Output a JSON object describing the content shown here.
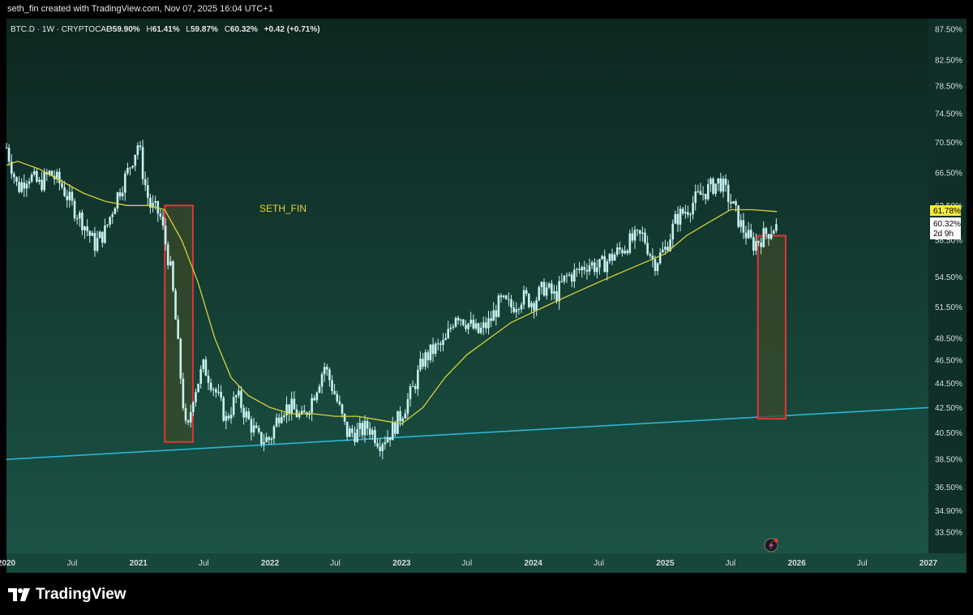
{
  "header": {
    "attribution": "seth_fin created with TradingView.com, Nov 07, 2025 16:04 UTC+1"
  },
  "legend": {
    "symbol": "BTC.D · 1W · CRYPTOCAP",
    "open_label": "O",
    "open": "59.90%",
    "high_label": "H",
    "high": "61.41%",
    "low_label": "L",
    "low": "59.87%",
    "close_label": "C",
    "close": "60.32%",
    "change": "+0.42 (+0.71%)"
  },
  "watermark_text": "SETH_FIN",
  "price_labels": {
    "ma_value": "61.78%",
    "last_price": "60.32%",
    "countdown": "2d 9h"
  },
  "footer": {
    "brand": "TradingView"
  },
  "colors": {
    "bg_top": "#0d2620",
    "bg_bottom": "#1c5547",
    "candle": "#c7f2f2",
    "ma_line": "#d8d13a",
    "trendline": "#29b6d6",
    "box_border": "#e0353b",
    "box_fill": "#3a4a2a",
    "ma_label_bg": "#f7e93a",
    "watermark": "#e8d43a"
  },
  "chart_data": {
    "type": "candlestick",
    "symbol": "BTC.D",
    "timeframe": "1W",
    "y_axis": {
      "scale": "log",
      "ticks": [
        87.5,
        82.5,
        78.5,
        74.5,
        70.5,
        66.5,
        62.5,
        58.5,
        54.5,
        51.5,
        48.5,
        46.5,
        44.5,
        42.5,
        40.5,
        38.5,
        36.5,
        34.9,
        33.5
      ],
      "tick_labels": [
        "87.50%",
        "82.50%",
        "78.50%",
        "74.50%",
        "70.50%",
        "66.50%",
        "62.50%",
        "58.50%",
        "54.50%",
        "51.50%",
        "48.50%",
        "46.50%",
        "44.50%",
        "42.50%",
        "40.50%",
        "38.50%",
        "36.50%",
        "34.90%",
        "33.50%"
      ]
    },
    "x_axis": {
      "range": [
        "2020-01-01",
        "2027-01-01"
      ],
      "tick_labels": [
        "2020",
        "Jul",
        "2021",
        "Jul",
        "2022",
        "Jul",
        "2023",
        "Jul",
        "2024",
        "Jul",
        "2025",
        "Jul",
        "2026",
        "Jul",
        "2027"
      ],
      "tick_dates": [
        "2020-01-01",
        "2020-07-01",
        "2021-01-01",
        "2021-07-01",
        "2022-01-01",
        "2022-07-01",
        "2023-01-01",
        "2023-07-01",
        "2024-01-01",
        "2024-07-01",
        "2025-01-01",
        "2025-07-01",
        "2026-01-01",
        "2026-07-01",
        "2027-01-01"
      ]
    },
    "price_path": [
      [
        "2020-01-01",
        69.8
      ],
      [
        "2020-02-01",
        64.5
      ],
      [
        "2020-03-01",
        66.3
      ],
      [
        "2020-04-01",
        65.0
      ],
      [
        "2020-05-01",
        66.5
      ],
      [
        "2020-06-01",
        65.0
      ],
      [
        "2020-07-01",
        62.5
      ],
      [
        "2020-08-01",
        60.5
      ],
      [
        "2020-09-01",
        58.0
      ],
      [
        "2020-10-01",
        59.5
      ],
      [
        "2020-11-01",
        63.5
      ],
      [
        "2020-12-01",
        66.5
      ],
      [
        "2021-01-01",
        70.5
      ],
      [
        "2021-01-15",
        66.0
      ],
      [
        "2021-02-01",
        62.5
      ],
      [
        "2021-03-01",
        61.5
      ],
      [
        "2021-04-01",
        55.0
      ],
      [
        "2021-05-01",
        44.0
      ],
      [
        "2021-05-15",
        40.0
      ],
      [
        "2021-06-01",
        43.5
      ],
      [
        "2021-07-01",
        46.0
      ],
      [
        "2021-08-01",
        44.0
      ],
      [
        "2021-09-01",
        41.5
      ],
      [
        "2021-10-01",
        43.5
      ],
      [
        "2021-11-01",
        41.5
      ],
      [
        "2021-12-01",
        40.0
      ],
      [
        "2022-01-01",
        40.0
      ],
      [
        "2022-02-01",
        42.5
      ],
      [
        "2022-03-01",
        42.5
      ],
      [
        "2022-04-01",
        41.5
      ],
      [
        "2022-05-01",
        43.5
      ],
      [
        "2022-06-01",
        46.0
      ],
      [
        "2022-07-01",
        43.5
      ],
      [
        "2022-08-01",
        40.5
      ],
      [
        "2022-09-01",
        40.5
      ],
      [
        "2022-10-01",
        41.0
      ],
      [
        "2022-11-01",
        39.8
      ],
      [
        "2022-12-01",
        40.5
      ],
      [
        "2023-01-01",
        42.0
      ],
      [
        "2023-02-01",
        44.0
      ],
      [
        "2023-03-01",
        46.5
      ],
      [
        "2023-04-01",
        47.5
      ],
      [
        "2023-05-01",
        48.0
      ],
      [
        "2023-06-01",
        51.0
      ],
      [
        "2023-07-01",
        50.0
      ],
      [
        "2023-08-01",
        49.0
      ],
      [
        "2023-09-01",
        50.0
      ],
      [
        "2023-10-01",
        52.0
      ],
      [
        "2023-11-01",
        51.5
      ],
      [
        "2023-12-01",
        52.5
      ],
      [
        "2024-01-01",
        52.0
      ],
      [
        "2024-02-01",
        53.5
      ],
      [
        "2024-03-01",
        52.5
      ],
      [
        "2024-04-01",
        54.5
      ],
      [
        "2024-05-01",
        55.0
      ],
      [
        "2024-06-01",
        56.0
      ],
      [
        "2024-07-01",
        55.5
      ],
      [
        "2024-08-01",
        56.5
      ],
      [
        "2024-09-01",
        57.5
      ],
      [
        "2024-10-01",
        58.5
      ],
      [
        "2024-11-01",
        59.0
      ],
      [
        "2024-12-01",
        56.0
      ],
      [
        "2025-01-01",
        57.5
      ],
      [
        "2025-02-01",
        61.0
      ],
      [
        "2025-03-01",
        62.0
      ],
      [
        "2025-04-01",
        63.5
      ],
      [
        "2025-05-01",
        64.5
      ],
      [
        "2025-06-01",
        65.5
      ],
      [
        "2025-07-01",
        63.0
      ],
      [
        "2025-08-01",
        60.0
      ],
      [
        "2025-09-01",
        58.0
      ],
      [
        "2025-10-01",
        59.0
      ],
      [
        "2025-11-07",
        60.32
      ]
    ],
    "moving_average": [
      [
        "2020-01-01",
        67.5
      ],
      [
        "2020-02-01",
        68.0
      ],
      [
        "2020-04-01",
        67.0
      ],
      [
        "2020-06-01",
        65.5
      ],
      [
        "2020-08-01",
        64.0
      ],
      [
        "2020-10-01",
        63.0
      ],
      [
        "2020-12-01",
        62.5
      ],
      [
        "2021-02-01",
        62.5
      ],
      [
        "2021-03-15",
        62.0
      ],
      [
        "2021-05-01",
        58.5
      ],
      [
        "2021-06-15",
        54.0
      ],
      [
        "2021-08-01",
        48.5
      ],
      [
        "2021-09-15",
        45.0
      ],
      [
        "2021-11-01",
        43.5
      ],
      [
        "2022-01-01",
        42.5
      ],
      [
        "2022-03-01",
        42.0
      ],
      [
        "2022-05-01",
        42.0
      ],
      [
        "2022-07-01",
        41.8
      ],
      [
        "2022-09-01",
        41.8
      ],
      [
        "2022-11-01",
        41.5
      ],
      [
        "2023-01-01",
        41.2
      ],
      [
        "2023-03-01",
        42.5
      ],
      [
        "2023-05-01",
        45.0
      ],
      [
        "2023-07-01",
        47.0
      ],
      [
        "2023-09-01",
        48.5
      ],
      [
        "2023-11-01",
        50.0
      ],
      [
        "2024-01-01",
        51.0
      ],
      [
        "2024-03-01",
        52.0
      ],
      [
        "2024-05-01",
        53.0
      ],
      [
        "2024-07-01",
        54.0
      ],
      [
        "2024-09-01",
        55.0
      ],
      [
        "2024-11-01",
        56.0
      ],
      [
        "2025-01-01",
        57.0
      ],
      [
        "2025-03-01",
        59.0
      ],
      [
        "2025-05-01",
        60.5
      ],
      [
        "2025-07-01",
        62.0
      ],
      [
        "2025-09-01",
        62.0
      ],
      [
        "2025-11-07",
        61.78
      ]
    ],
    "trendline": {
      "from": [
        "2020-01-01",
        38.5
      ],
      "to": [
        "2027-01-01",
        42.5
      ]
    },
    "highlight_boxes": [
      {
        "from": "2021-03-15",
        "to": "2021-06-01",
        "top": 62.5,
        "bottom": 39.8
      },
      {
        "from": "2025-09-15",
        "to": "2025-12-01",
        "top": 59.0,
        "bottom": 41.6
      }
    ]
  }
}
